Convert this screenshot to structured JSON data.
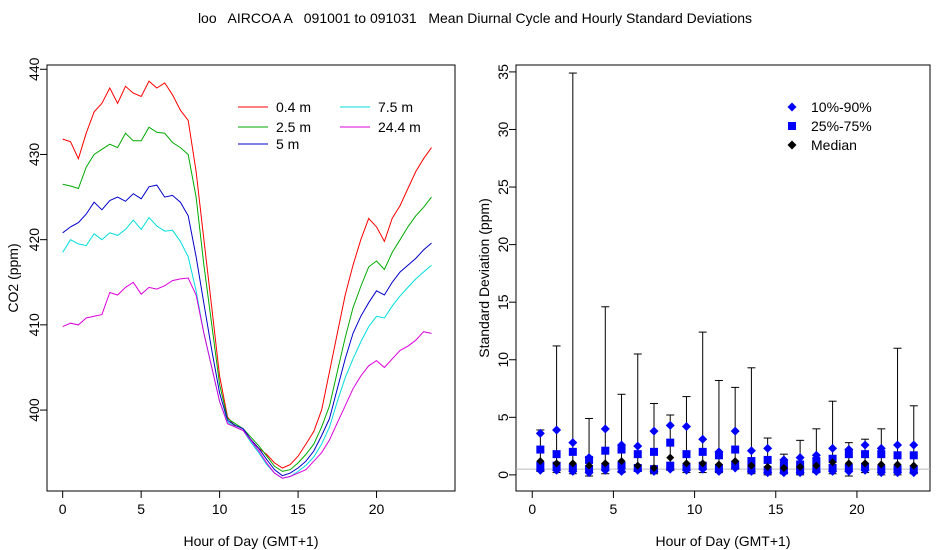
{
  "title": "loo   AIRCOA A   091001 to 091031   Mean Diurnal Cycle and Hourly Standard Deviations",
  "chart_data": [
    {
      "type": "line",
      "xlabel": "Hour of Day (GMT+1)",
      "ylabel": "CO2 (ppm)",
      "xlim": [
        -1,
        25
      ],
      "ylim": [
        390.5,
        440.5
      ],
      "x_ticks": [
        "0",
        "5",
        "10",
        "15",
        "20"
      ],
      "y_ticks": [
        "400",
        "410",
        "420",
        "430",
        "440"
      ],
      "legend_position": "top-right",
      "x": [
        0,
        0.5,
        1,
        1.5,
        2,
        2.5,
        3,
        3.5,
        4,
        4.5,
        5,
        5.5,
        6,
        6.5,
        7,
        7.5,
        8,
        8.5,
        9,
        9.5,
        10,
        10.5,
        11,
        11.5,
        12,
        12.5,
        13,
        13.5,
        14,
        14.5,
        15,
        15.5,
        16,
        16.5,
        17,
        17.5,
        18,
        18.5,
        19,
        19.5,
        20,
        20.5,
        21,
        21.5,
        22,
        22.5,
        23,
        23.5
      ],
      "series": [
        {
          "name": "0.4 m",
          "color": "#ff0000",
          "values": [
            431.8,
            431.5,
            429.5,
            432.5,
            435.0,
            436.0,
            437.8,
            436.0,
            438.0,
            437.2,
            436.8,
            438.6,
            437.8,
            438.4,
            437.0,
            435.2,
            434.0,
            428.0,
            420.0,
            412.0,
            404.0,
            399.2,
            398.0,
            397.6,
            396.5,
            395.5,
            394.8,
            393.8,
            393.2,
            393.6,
            394.6,
            396.0,
            397.5,
            400.0,
            404.5,
            409.0,
            413.5,
            417.0,
            420.0,
            422.5,
            421.5,
            419.8,
            422.5,
            424.0,
            426.0,
            428.0,
            429.5,
            430.8
          ]
        },
        {
          "name": "2.5 m",
          "color": "#00aa00",
          "values": [
            426.5,
            426.3,
            426.0,
            428.5,
            430.0,
            430.6,
            431.2,
            430.8,
            432.5,
            431.6,
            431.6,
            433.2,
            432.6,
            432.5,
            431.4,
            430.8,
            430.0,
            425.0,
            417.0,
            410.0,
            403.0,
            399.0,
            398.4,
            397.8,
            396.8,
            395.8,
            394.6,
            393.4,
            392.8,
            393.0,
            393.8,
            394.8,
            396.0,
            398.0,
            400.5,
            404.5,
            408.5,
            412.0,
            414.5,
            416.8,
            417.5,
            416.5,
            418.5,
            420.0,
            421.5,
            422.8,
            423.8,
            425.0
          ]
        },
        {
          "name": "5 m",
          "color": "#0000cc",
          "values": [
            420.8,
            421.5,
            422.0,
            423.0,
            424.4,
            423.5,
            424.6,
            425.0,
            424.5,
            425.4,
            424.8,
            426.2,
            426.4,
            425.0,
            425.2,
            424.4,
            422.8,
            418.0,
            412.5,
            407.0,
            402.0,
            398.8,
            398.2,
            397.8,
            396.5,
            395.5,
            394.2,
            393.0,
            392.3,
            392.6,
            393.2,
            394.0,
            395.2,
            397.0,
            399.0,
            402.5,
            406.0,
            409.0,
            411.0,
            412.6,
            414.0,
            413.5,
            415.0,
            416.2,
            417.0,
            417.8,
            418.8,
            419.6
          ]
        },
        {
          "name": "7.5 m",
          "color": "#00dddd",
          "values": [
            418.5,
            420.0,
            419.5,
            419.3,
            420.7,
            420.0,
            420.8,
            420.5,
            421.2,
            422.3,
            421.2,
            422.6,
            421.6,
            421.0,
            421.1,
            419.8,
            418.0,
            414.0,
            409.0,
            405.0,
            401.0,
            398.6,
            398.0,
            397.6,
            396.2,
            395.0,
            393.6,
            392.6,
            392.0,
            392.2,
            392.8,
            393.5,
            394.5,
            396.0,
            398.0,
            401.0,
            403.8,
            406.0,
            408.0,
            409.8,
            411.0,
            410.8,
            412.2,
            413.4,
            414.4,
            415.4,
            416.2,
            417.0
          ]
        },
        {
          "name": "24.4 m",
          "color": "#dd00dd",
          "values": [
            409.8,
            410.2,
            410.0,
            410.8,
            411.0,
            411.2,
            413.8,
            413.5,
            414.4,
            415.0,
            413.6,
            414.4,
            414.2,
            414.6,
            415.2,
            415.4,
            415.5,
            413.5,
            409.0,
            405.0,
            401.0,
            398.4,
            398.0,
            397.6,
            396.4,
            395.2,
            393.8,
            392.6,
            392.0,
            392.2,
            392.6,
            393.0,
            394.0,
            395.0,
            396.5,
            398.5,
            400.5,
            402.5,
            404.0,
            405.2,
            405.8,
            405.0,
            406.0,
            407.0,
            407.5,
            408.2,
            409.2,
            409.0
          ]
        }
      ]
    },
    {
      "type": "scatter",
      "xlabel": "Hour of Day (GMT+1)",
      "ylabel": "Standard Deviation (ppm)",
      "xlim": [
        -1,
        24.5
      ],
      "ylim": [
        -1.4,
        35.6
      ],
      "x_ticks": [
        "0",
        "5",
        "10",
        "15",
        "20"
      ],
      "y_ticks": [
        "0",
        "5",
        "10",
        "15",
        "20",
        "25",
        "30",
        "35"
      ],
      "legend_position": "top-right",
      "legend": [
        {
          "name": "10%-90%",
          "marker": "diamond",
          "color": "#0000ff"
        },
        {
          "name": "25%-75%",
          "marker": "square",
          "color": "#0000ff"
        },
        {
          "name": "Median",
          "marker": "diamond",
          "color": "#000000"
        }
      ],
      "x": [
        0.5,
        1.5,
        2.5,
        3.5,
        4.5,
        5.5,
        6.5,
        7.5,
        8.5,
        9.5,
        10.5,
        11.5,
        12.5,
        13.5,
        14.5,
        15.5,
        16.5,
        17.5,
        18.5,
        19.5,
        20.5,
        21.5,
        22.5,
        23.5
      ],
      "whisker_max": [
        3.9,
        11.2,
        34.9,
        4.9,
        14.6,
        7.0,
        10.5,
        6.2,
        5.2,
        6.8,
        12.4,
        8.2,
        7.6,
        9.3,
        3.2,
        1.8,
        3.0,
        4.0,
        6.4,
        2.8,
        3.1,
        4.0,
        11.0,
        6.0
      ],
      "whisker_min": [
        0.3,
        0.2,
        0.1,
        -0.1,
        0.1,
        0.2,
        0.3,
        0.1,
        0.4,
        0.2,
        0.2,
        0.2,
        0.5,
        0.1,
        0.0,
        0.1,
        0.0,
        0.2,
        0.1,
        -0.1,
        0.2,
        0.0,
        0.0,
        0.1
      ],
      "p10_90_high": [
        3.6,
        3.9,
        2.8,
        1.5,
        4.0,
        2.6,
        2.5,
        3.8,
        4.3,
        4.2,
        3.1,
        2.0,
        3.8,
        2.1,
        2.3,
        1.3,
        1.5,
        1.7,
        2.3,
        2.2,
        2.6,
        2.3,
        2.6,
        2.6
      ],
      "p25_75_high": [
        2.2,
        1.8,
        2.0,
        1.3,
        2.1,
        2.2,
        1.8,
        2.0,
        2.8,
        1.8,
        2.0,
        1.7,
        2.2,
        1.2,
        1.3,
        0.9,
        0.9,
        1.2,
        1.4,
        1.8,
        1.8,
        1.8,
        1.7,
        1.7
      ],
      "median": [
        1.2,
        1.0,
        1.0,
        0.8,
        1.0,
        1.2,
        0.8,
        0.6,
        1.5,
        1.0,
        1.0,
        0.9,
        1.2,
        0.8,
        0.7,
        0.6,
        0.7,
        0.8,
        1.1,
        1.0,
        1.0,
        0.9,
        0.9,
        0.8
      ],
      "p25_75_low": [
        0.8,
        0.8,
        0.6,
        0.5,
        0.7,
        0.8,
        0.6,
        0.5,
        0.8,
        0.7,
        0.8,
        0.6,
        0.9,
        0.5,
        0.4,
        0.4,
        0.4,
        0.5,
        0.6,
        0.6,
        0.7,
        0.5,
        0.5,
        0.5
      ],
      "p10_90_low": [
        0.4,
        0.4,
        0.3,
        0.2,
        0.4,
        0.3,
        0.4,
        0.3,
        0.5,
        0.4,
        0.5,
        0.3,
        0.6,
        0.3,
        0.2,
        0.2,
        0.2,
        0.3,
        0.3,
        0.3,
        0.4,
        0.2,
        0.2,
        0.2
      ],
      "reference_line": 0.5
    }
  ]
}
